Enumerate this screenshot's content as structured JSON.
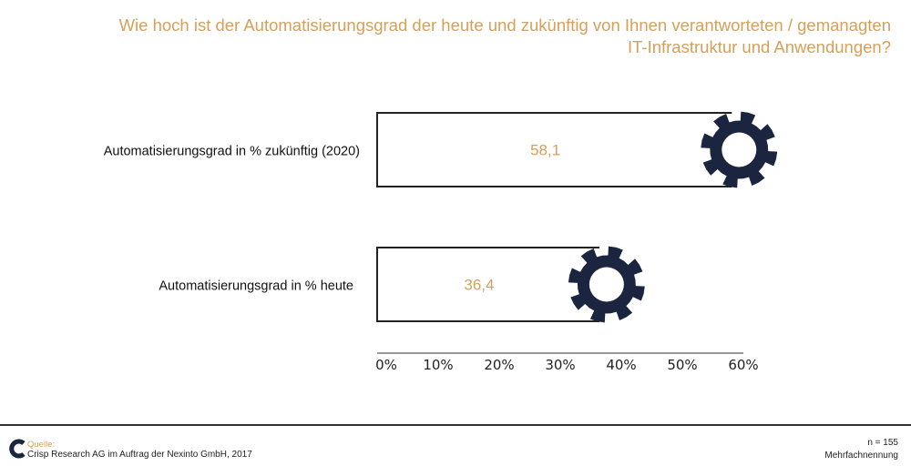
{
  "title_line1": "Wie hoch ist der Automatisierungsgrad der heute und zukünftig von Ihnen verantworteten / gemanagten",
  "title_line2": "IT-Infrastruktur und Anwendungen?",
  "colors": {
    "accent": "#d6a05a",
    "gear": "#1b2540",
    "frame": "#222222"
  },
  "chart_data": {
    "type": "bar",
    "orientation": "horizontal",
    "categories": [
      "Automatisierungsgrad in % zukünftig (2020)",
      "Automatisierungsgrad in % heute"
    ],
    "values": [
      58.1,
      36.4
    ],
    "value_labels": [
      "58,1",
      "36,4"
    ],
    "xlim": [
      0,
      60
    ],
    "xticks": [
      "0%",
      "10%",
      "20%",
      "30%",
      "40%",
      "50%",
      "60%"
    ],
    "marker_icon": "gear-icon"
  },
  "footer": {
    "source_label": "Quelle:",
    "source_text": "Crisp Research AG im Auftrag der Nexinto GmbH, 2017",
    "n": "n = 155",
    "note": "Mehrfachnennung"
  }
}
